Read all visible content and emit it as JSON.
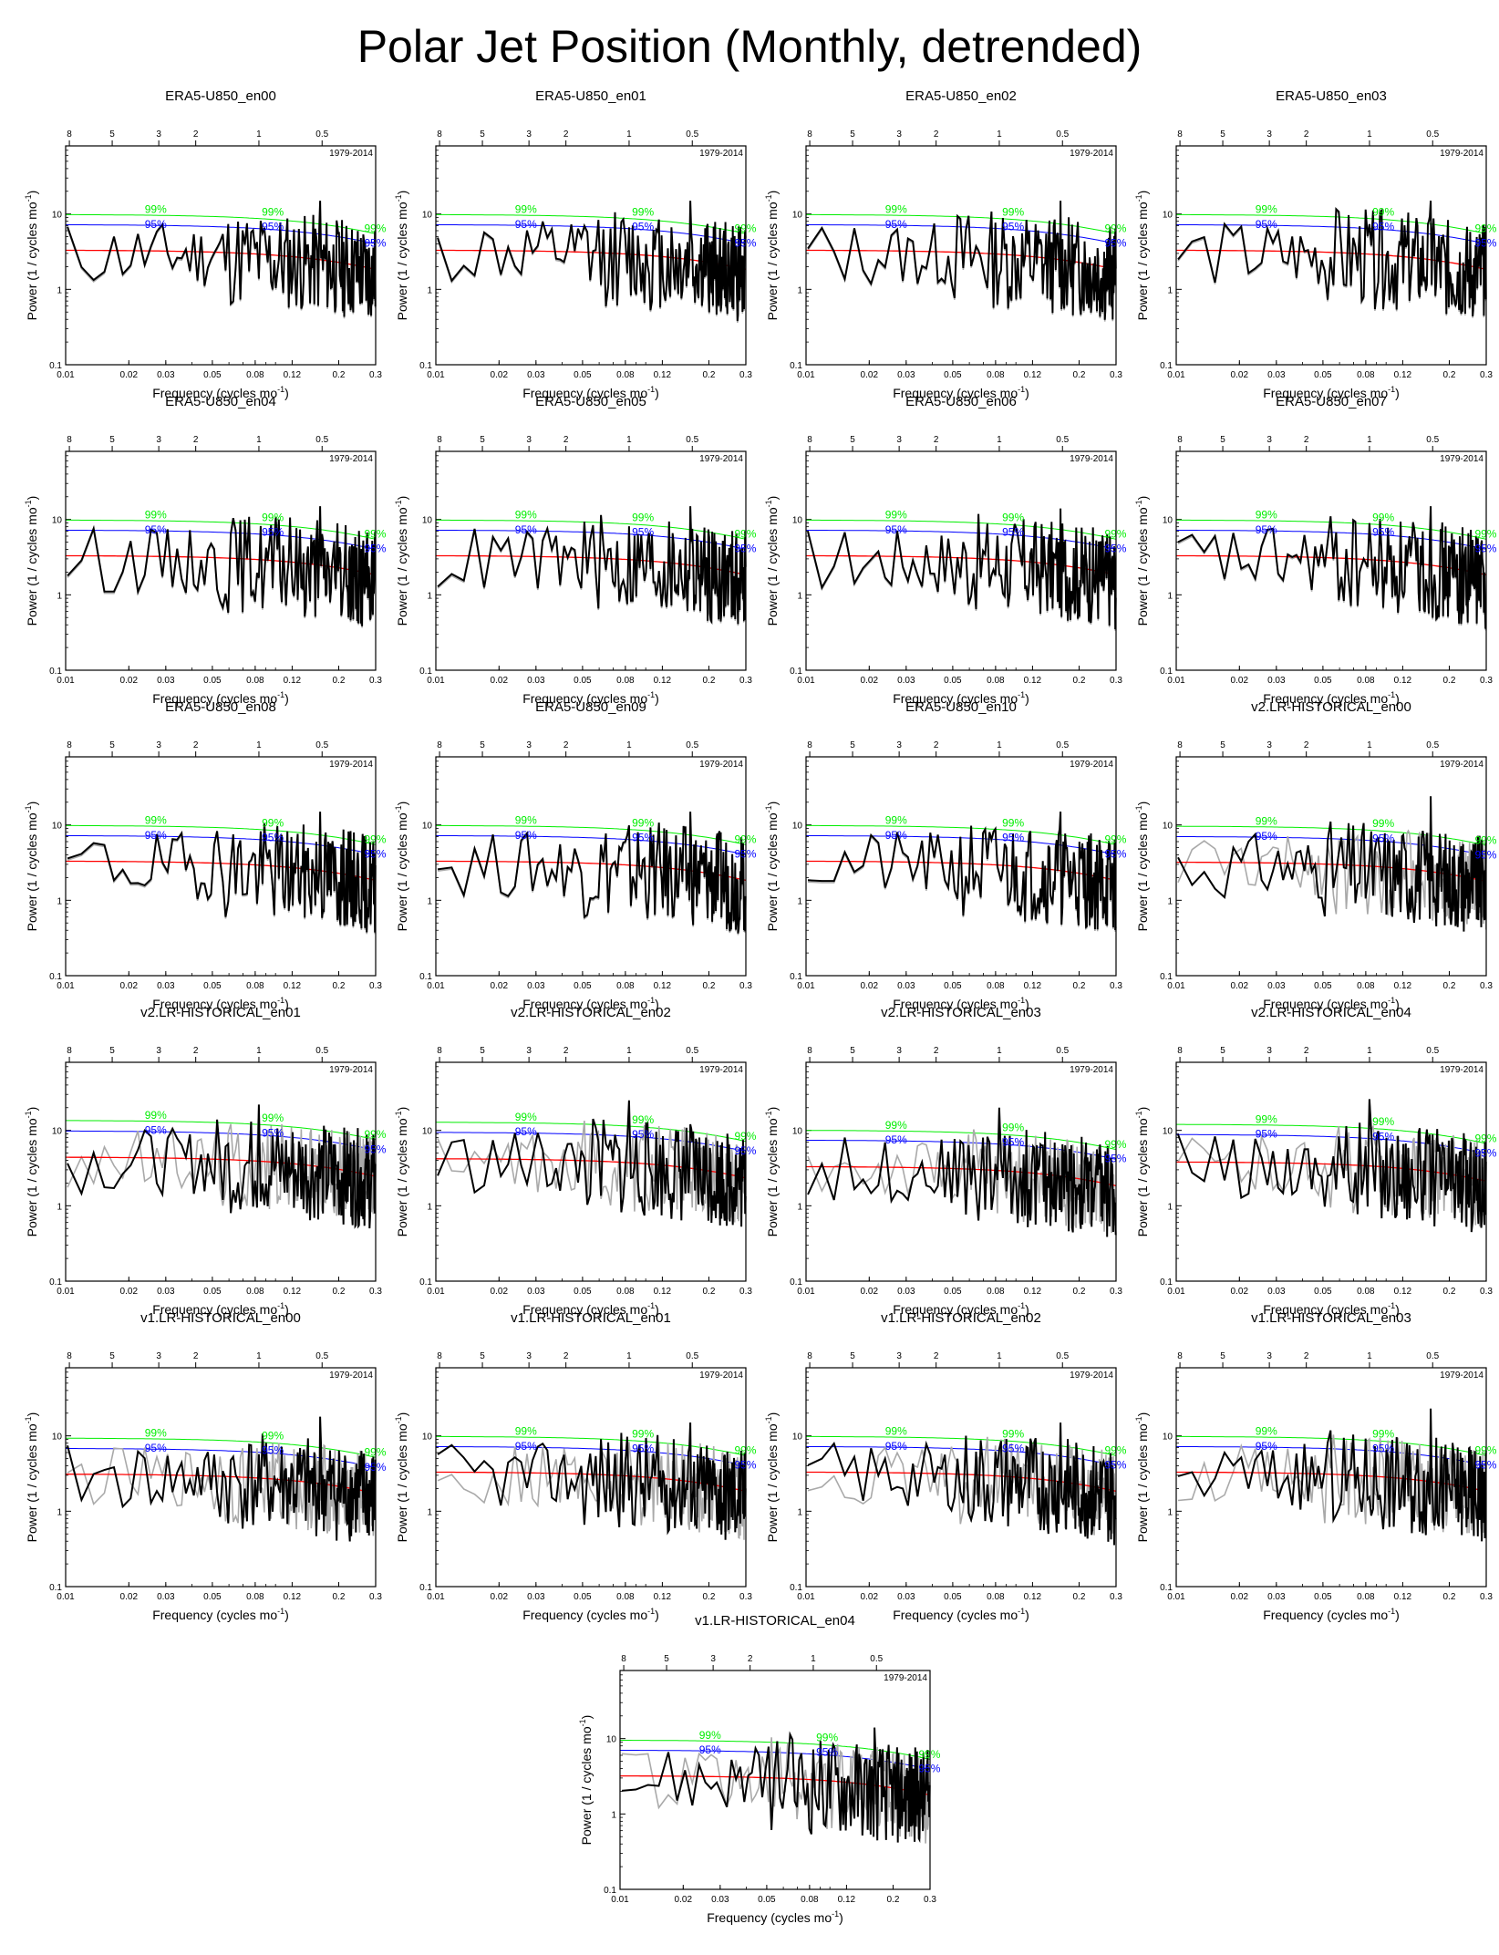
{
  "title": "Polar Jet Position (Monthly, detrended)",
  "common": {
    "xlabel": "Frequency (cycles mo",
    "xlabel_sup": "-1",
    "xlabel_end": ")",
    "ylabel": "Power (1 / cycles mo",
    "ylabel_sup": "-1",
    "ylabel_end": ")",
    "period_label": "1979-2014",
    "x_ticks": [
      0.01,
      0.02,
      0.03,
      0.05,
      0.08,
      0.12,
      0.2,
      0.3
    ],
    "x_tick_labels": [
      "0.01",
      "0.02",
      "0.03",
      "0.05",
      "0.08",
      "0.12",
      "0.2",
      "0.3"
    ],
    "top_ticks": [
      8,
      5,
      3,
      2,
      1,
      0.5
    ],
    "top_tick_labels": [
      "8",
      "5",
      "3",
      "2",
      "1",
      "0.5"
    ],
    "y_ticks": [
      0.1,
      1,
      10
    ],
    "y_tick_labels": [
      "0.1",
      "1",
      "10"
    ],
    "label_99": "99%",
    "label_95": "95%",
    "colors": {
      "spectrum": "#000000",
      "reference": "#a9a9a9",
      "red_noise": "#ff0000",
      "c95": "#0000ff",
      "c99": "#00ee00"
    }
  },
  "chart_data": [
    {
      "type": "line",
      "title": "ERA5-U850_en00",
      "xlim": [
        0.01,
        0.3
      ],
      "ylim": [
        0.1,
        80
      ],
      "x_scale": "log",
      "y_scale": "log",
      "seed": 11,
      "c95_label": "95%",
      "c99_label": "99%",
      "red_noise_at_0_01": 3.3,
      "c95_at_0_01": 7.2,
      "c99_at_0_01": 9.8,
      "ref_differs": false,
      "peak_freq": 0.163,
      "peak_value": 15
    },
    {
      "type": "line",
      "title": "ERA5-U850_en01",
      "xlim": [
        0.01,
        0.3
      ],
      "ylim": [
        0.1,
        80
      ],
      "x_scale": "log",
      "y_scale": "log",
      "seed": 12,
      "c95_label": "95%",
      "c99_label": "99%",
      "red_noise_at_0_01": 3.3,
      "c95_at_0_01": 7.2,
      "c99_at_0_01": 9.8,
      "ref_differs": false,
      "peak_freq": 0.163,
      "peak_value": 15
    },
    {
      "type": "line",
      "title": "ERA5-U850_en02",
      "xlim": [
        0.01,
        0.3
      ],
      "ylim": [
        0.1,
        80
      ],
      "x_scale": "log",
      "y_scale": "log",
      "seed": 13,
      "c95_label": "95%",
      "c99_label": "99%",
      "red_noise_at_0_01": 3.3,
      "c95_at_0_01": 7.2,
      "c99_at_0_01": 9.8,
      "ref_differs": false,
      "peak_freq": 0.163,
      "peak_value": 15
    },
    {
      "type": "line",
      "title": "ERA5-U850_en03",
      "xlim": [
        0.01,
        0.3
      ],
      "ylim": [
        0.1,
        80
      ],
      "x_scale": "log",
      "y_scale": "log",
      "seed": 14,
      "c95_label": "95%",
      "c99_label": "99%",
      "red_noise_at_0_01": 3.3,
      "c95_at_0_01": 7.2,
      "c99_at_0_01": 9.8,
      "ref_differs": false,
      "peak_freq": 0.163,
      "peak_value": 15
    },
    {
      "type": "line",
      "title": "ERA5-U850_en04",
      "xlim": [
        0.01,
        0.3
      ],
      "ylim": [
        0.1,
        80
      ],
      "x_scale": "log",
      "y_scale": "log",
      "seed": 15,
      "c95_label": "95%",
      "c99_label": "99%",
      "red_noise_at_0_01": 3.3,
      "c95_at_0_01": 7.2,
      "c99_at_0_01": 9.8,
      "ref_differs": false,
      "peak_freq": 0.163,
      "peak_value": 15
    },
    {
      "type": "line",
      "title": "ERA5-U850_en05",
      "xlim": [
        0.01,
        0.3
      ],
      "ylim": [
        0.1,
        80
      ],
      "x_scale": "log",
      "y_scale": "log",
      "seed": 16,
      "c95_label": "95%",
      "c99_label": "99%",
      "red_noise_at_0_01": 3.3,
      "c95_at_0_01": 7.2,
      "c99_at_0_01": 9.8,
      "ref_differs": false,
      "peak_freq": 0.163,
      "peak_value": 15
    },
    {
      "type": "line",
      "title": "ERA5-U850_en06",
      "xlim": [
        0.01,
        0.3
      ],
      "ylim": [
        0.1,
        80
      ],
      "x_scale": "log",
      "y_scale": "log",
      "seed": 17,
      "c95_label": "95%",
      "c99_label": "99%",
      "red_noise_at_0_01": 3.3,
      "c95_at_0_01": 7.2,
      "c99_at_0_01": 9.8,
      "ref_differs": false,
      "peak_freq": 0.163,
      "peak_value": 14
    },
    {
      "type": "line",
      "title": "ERA5-U850_en07",
      "xlim": [
        0.01,
        0.3
      ],
      "ylim": [
        0.1,
        80
      ],
      "x_scale": "log",
      "y_scale": "log",
      "seed": 18,
      "c95_label": "95%",
      "c99_label": "99%",
      "red_noise_at_0_01": 3.3,
      "c95_at_0_01": 7.2,
      "c99_at_0_01": 9.8,
      "ref_differs": false,
      "peak_freq": 0.163,
      "peak_value": 15
    },
    {
      "type": "line",
      "title": "ERA5-U850_en08",
      "xlim": [
        0.01,
        0.3
      ],
      "ylim": [
        0.1,
        80
      ],
      "x_scale": "log",
      "y_scale": "log",
      "seed": 19,
      "c95_label": "95%",
      "c99_label": "99%",
      "red_noise_at_0_01": 3.3,
      "c95_at_0_01": 7.2,
      "c99_at_0_01": 9.8,
      "ref_differs": false,
      "peak_freq": 0.163,
      "peak_value": 15
    },
    {
      "type": "line",
      "title": "ERA5-U850_en09",
      "xlim": [
        0.01,
        0.3
      ],
      "ylim": [
        0.1,
        80
      ],
      "x_scale": "log",
      "y_scale": "log",
      "seed": 20,
      "c95_label": "95%",
      "c99_label": "99%",
      "red_noise_at_0_01": 3.3,
      "c95_at_0_01": 7.2,
      "c99_at_0_01": 9.8,
      "ref_differs": false,
      "peak_freq": 0.163,
      "peak_value": 15
    },
    {
      "type": "line",
      "title": "ERA5-U850_en10",
      "xlim": [
        0.01,
        0.3
      ],
      "ylim": [
        0.1,
        80
      ],
      "x_scale": "log",
      "y_scale": "log",
      "seed": 21,
      "c95_label": "95%",
      "c99_label": "99%",
      "red_noise_at_0_01": 3.3,
      "c95_at_0_01": 7.2,
      "c99_at_0_01": 9.8,
      "ref_differs": false,
      "peak_freq": 0.163,
      "peak_value": 15
    },
    {
      "type": "line",
      "title": "v2.LR-HISTORICAL_en00",
      "xlim": [
        0.01,
        0.3
      ],
      "ylim": [
        0.1,
        80
      ],
      "x_scale": "log",
      "y_scale": "log",
      "seed": 31,
      "c95_label": "95%",
      "c99_label": "99%",
      "red_noise_at_0_01": 3.2,
      "c95_at_0_01": 7.0,
      "c99_at_0_01": 9.6,
      "ref_differs": true,
      "peak_freq": 0.163,
      "peak_value": 24
    },
    {
      "type": "line",
      "title": "v2.LR-HISTORICAL_en01",
      "xlim": [
        0.01,
        0.3
      ],
      "ylim": [
        0.1,
        80
      ],
      "x_scale": "log",
      "y_scale": "log",
      "seed": 32,
      "c95_label": "95%",
      "c99_label": "99%",
      "red_noise_at_0_01": 4.4,
      "c95_at_0_01": 9.8,
      "c99_at_0_01": 13.5,
      "ref_differs": true,
      "peak_freq": 0.083,
      "peak_value": 22
    },
    {
      "type": "line",
      "title": "v2.LR-HISTORICAL_en02",
      "xlim": [
        0.01,
        0.3
      ],
      "ylim": [
        0.1,
        80
      ],
      "x_scale": "log",
      "y_scale": "log",
      "seed": 33,
      "c95_label": "95%",
      "c99_label": "99%",
      "red_noise_at_0_01": 4.2,
      "c95_at_0_01": 9.4,
      "c99_at_0_01": 12.8,
      "ref_differs": true,
      "peak_freq": 0.083,
      "peak_value": 25
    },
    {
      "type": "line",
      "title": "v2.LR-HISTORICAL_en03",
      "xlim": [
        0.01,
        0.3
      ],
      "ylim": [
        0.1,
        80
      ],
      "x_scale": "log",
      "y_scale": "log",
      "seed": 34,
      "c95_label": "95%",
      "c99_label": "99%",
      "red_noise_at_0_01": 3.3,
      "c95_at_0_01": 7.4,
      "c99_at_0_01": 10.0,
      "ref_differs": true,
      "peak_freq": 0.083,
      "peak_value": 20
    },
    {
      "type": "line",
      "title": "v2.LR-HISTORICAL_en04",
      "xlim": [
        0.01,
        0.3
      ],
      "ylim": [
        0.1,
        80
      ],
      "x_scale": "log",
      "y_scale": "log",
      "seed": 35,
      "c95_label": "95%",
      "c99_label": "99%",
      "red_noise_at_0_01": 3.8,
      "c95_at_0_01": 8.8,
      "c99_at_0_01": 12.0,
      "ref_differs": true,
      "peak_freq": 0.083,
      "peak_value": 26
    },
    {
      "type": "line",
      "title": "v1.LR-HISTORICAL_en00",
      "xlim": [
        0.01,
        0.3
      ],
      "ylim": [
        0.1,
        80
      ],
      "x_scale": "log",
      "y_scale": "log",
      "seed": 41,
      "c95_label": "95%",
      "c99_label": "99%",
      "red_noise_at_0_01": 3.1,
      "c95_at_0_01": 6.8,
      "c99_at_0_01": 9.3,
      "ref_differs": true,
      "peak_freq": 0.163,
      "peak_value": 18
    },
    {
      "type": "line",
      "title": "v1.LR-HISTORICAL_en01",
      "xlim": [
        0.01,
        0.3
      ],
      "ylim": [
        0.1,
        80
      ],
      "x_scale": "log",
      "y_scale": "log",
      "seed": 42,
      "c95_label": "95%",
      "c99_label": "99%",
      "red_noise_at_0_01": 3.3,
      "c95_at_0_01": 7.2,
      "c99_at_0_01": 9.8,
      "ref_differs": true,
      "peak_freq": 0.163,
      "peak_value": 15
    },
    {
      "type": "line",
      "title": "v1.LR-HISTORICAL_en02",
      "xlim": [
        0.01,
        0.3
      ],
      "ylim": [
        0.1,
        80
      ],
      "x_scale": "log",
      "y_scale": "log",
      "seed": 43,
      "c95_label": "95%",
      "c99_label": "99%",
      "red_noise_at_0_01": 3.3,
      "c95_at_0_01": 7.2,
      "c99_at_0_01": 9.8,
      "ref_differs": true,
      "peak_freq": 0.163,
      "peak_value": 15
    },
    {
      "type": "line",
      "title": "v1.LR-HISTORICAL_en03",
      "xlim": [
        0.01,
        0.3
      ],
      "ylim": [
        0.1,
        80
      ],
      "x_scale": "log",
      "y_scale": "log",
      "seed": 44,
      "c95_label": "95%",
      "c99_label": "99%",
      "red_noise_at_0_01": 3.3,
      "c95_at_0_01": 7.2,
      "c99_at_0_01": 9.8,
      "ref_differs": true,
      "peak_freq": 0.163,
      "peak_value": 23
    },
    {
      "type": "line",
      "title": "v1.LR-HISTORICAL_en04",
      "xlim": [
        0.01,
        0.3
      ],
      "ylim": [
        0.1,
        80
      ],
      "x_scale": "log",
      "y_scale": "log",
      "seed": 45,
      "c95_label": "95%",
      "c99_label": "99%",
      "red_noise_at_0_01": 3.2,
      "c95_at_0_01": 7.0,
      "c99_at_0_01": 9.5,
      "ref_differs": true,
      "peak_freq": 0.163,
      "peak_value": 14
    }
  ]
}
